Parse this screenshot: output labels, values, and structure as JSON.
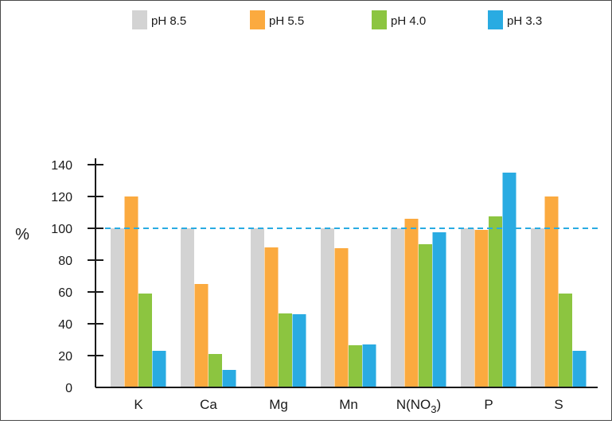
{
  "chart_data": {
    "type": "bar",
    "title": "",
    "xlabel": "",
    "ylabel": "%",
    "ylim": [
      0,
      140
    ],
    "yticks": [
      0,
      20,
      40,
      60,
      80,
      100,
      120,
      140
    ],
    "grid": false,
    "legend_position": "top",
    "reference_line": {
      "value": 100,
      "style": "dashed",
      "color": "#29abe2"
    },
    "categories": [
      "K",
      "Ca",
      "Mg",
      "Mn",
      "N(NO",
      "P",
      "S"
    ],
    "category_subscripts": [
      "",
      "",
      "",
      "",
      "3",
      "",
      ""
    ],
    "category_suffixes": [
      "",
      "",
      "",
      "",
      ")",
      "",
      ""
    ],
    "series": [
      {
        "name": "pH 8.5",
        "color": "#d3d3d3",
        "values": [
          100,
          100,
          100,
          100,
          100,
          100,
          100
        ]
      },
      {
        "name": "pH 5.5",
        "color": "#fbaa3f",
        "values": [
          120,
          65,
          88,
          87.5,
          106,
          99,
          120
        ]
      },
      {
        "name": "pH 4.0",
        "color": "#8cc540",
        "values": [
          59,
          21,
          46.5,
          26.5,
          90,
          107.5,
          59
        ]
      },
      {
        "name": "pH 3.3",
        "color": "#29abe2",
        "values": [
          23,
          11,
          46,
          27,
          97.5,
          135,
          23
        ]
      }
    ]
  }
}
